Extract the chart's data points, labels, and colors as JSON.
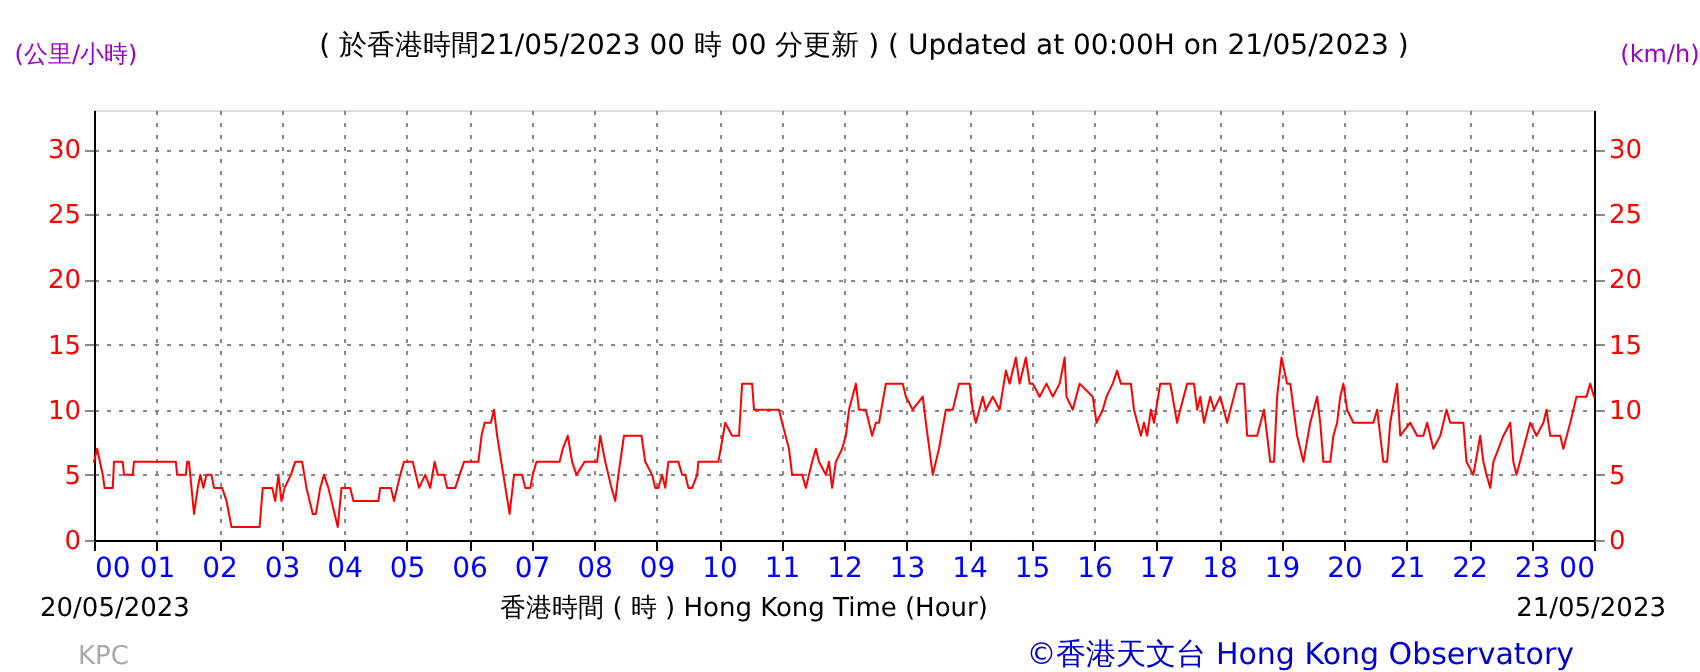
{
  "chart_data": {
    "type": "line",
    "title": "( 於香港時間21/05/2023 00 時 00 分更新 ) ( Updated at 00:00H on 21/05/2023 )",
    "xlabel": "香港時間 ( 時 )  Hong Kong Time (Hour)",
    "ylabel": "(公里/小時)",
    "y2label": "(km/h)",
    "annotations": [
      "20/05/2023",
      "21/05/2023",
      "KPC",
      "©香港天文台 Hong Kong Observatory"
    ],
    "xlim": [
      0,
      24
    ],
    "xticks": [
      {
        "value": 0,
        "label": "00"
      },
      {
        "value": 1,
        "label": "01"
      },
      {
        "value": 2,
        "label": "02"
      },
      {
        "value": 3,
        "label": "03"
      },
      {
        "value": 4,
        "label": "04"
      },
      {
        "value": 5,
        "label": "05"
      },
      {
        "value": 6,
        "label": "06"
      },
      {
        "value": 7,
        "label": "07"
      },
      {
        "value": 8,
        "label": "08"
      },
      {
        "value": 9,
        "label": "09"
      },
      10,
      11,
      12,
      13,
      14,
      15,
      16,
      17,
      18,
      19,
      20,
      21,
      22,
      23,
      {
        "value": 24,
        "label": "00"
      }
    ],
    "ylim": [
      0,
      33
    ],
    "yticks": [
      0,
      5,
      10,
      15,
      20,
      25,
      30
    ],
    "y2lim": [
      0,
      33
    ],
    "y2ticks": [
      0,
      5,
      10,
      15,
      20,
      25,
      30
    ],
    "grid": true,
    "line_style": "solid",
    "series": [
      {
        "color": "#ff0000",
        "x": [
          0.0,
          0.05,
          0.14,
          0.17,
          0.3,
          0.32,
          0.46,
          0.48,
          0.62,
          0.64,
          1.31,
          1.33,
          1.47,
          1.49,
          1.52,
          1.56,
          1.6,
          1.66,
          1.7,
          1.75,
          1.8,
          1.88,
          1.92,
          2.05,
          2.12,
          2.2,
          2.65,
          2.7,
          2.85,
          2.9,
          2.95,
          3.0,
          3.05,
          3.15,
          3.22,
          3.33,
          3.4,
          3.5,
          3.55,
          3.62,
          3.68,
          3.75,
          3.85,
          3.9,
          3.96,
          4.1,
          4.15,
          4.55,
          4.58,
          4.75,
          4.8,
          4.9,
          4.96,
          5.1,
          5.2,
          5.3,
          5.38,
          5.45,
          5.5,
          5.6,
          5.65,
          5.78,
          5.85,
          5.92,
          6.15,
          6.2,
          6.25,
          6.35,
          6.4,
          6.45,
          6.55,
          6.65,
          6.72,
          6.85,
          6.9,
          6.98,
          7.02,
          7.08,
          7.45,
          7.5,
          7.58,
          7.65,
          7.72,
          7.85,
          8.05,
          8.1,
          8.18,
          8.28,
          8.34,
          8.39,
          8.48,
          8.76,
          8.82,
          8.93,
          8.98,
          9.03,
          9.09,
          9.14,
          9.19,
          9.35,
          9.41,
          9.46,
          9.51,
          9.57,
          9.65,
          9.67,
          9.99,
          10.1,
          10.21,
          10.32,
          10.37,
          10.53,
          10.56,
          10.64,
          10.96,
          11.01,
          11.12,
          11.17,
          11.33,
          11.39,
          11.44,
          11.49,
          11.55,
          11.6,
          11.71,
          11.76,
          11.81,
          11.87,
          11.97,
          12.03,
          12.08,
          12.19,
          12.24,
          12.35,
          12.4,
          12.45,
          12.51,
          12.56,
          12.67,
          12.94,
          12.99,
          13.1,
          13.26,
          13.31,
          13.42,
          13.47,
          13.52,
          13.63,
          13.74,
          13.84,
          14.01,
          14.06,
          14.11,
          14.22,
          14.27,
          14.38,
          14.49,
          14.59,
          14.65,
          14.75,
          14.81,
          14.91,
          14.97,
          15.02,
          15.13,
          15.24,
          15.34,
          15.45,
          15.53,
          15.56,
          15.66,
          15.77,
          15.98,
          16.04,
          16.14,
          16.2,
          16.3,
          16.37,
          16.43,
          16.59,
          16.64,
          16.75,
          16.8,
          16.85,
          16.91,
          16.96,
          17.06,
          17.22,
          17.33,
          17.38,
          17.49,
          17.6,
          17.65,
          17.7,
          17.76,
          17.86,
          17.92,
          18.02,
          18.13,
          18.29,
          18.4,
          18.45,
          18.61,
          18.72,
          18.82,
          18.88,
          18.93,
          19.0,
          19.09,
          19.14,
          19.25,
          19.35,
          19.46,
          19.57,
          19.62,
          19.67,
          19.78,
          19.83,
          19.89,
          19.94,
          19.99,
          20.05,
          20.15,
          20.47,
          20.53,
          20.63,
          20.69,
          20.74,
          20.85,
          20.9,
          21.06,
          21.17,
          21.27,
          21.33,
          21.43,
          21.54,
          21.64,
          21.7,
          21.91,
          21.96,
          22.07,
          22.18,
          22.23,
          22.28,
          22.34,
          22.39,
          22.55,
          22.66,
          22.71,
          22.76,
          22.87,
          22.98,
          23.08,
          23.19,
          23.24,
          23.3,
          23.46,
          23.51,
          23.62,
          23.72,
          23.88,
          23.94,
          24.0
        ],
        "values": [
          6,
          7,
          5,
          4,
          4,
          6,
          6,
          5,
          5,
          6,
          6,
          5,
          5,
          6,
          6,
          4,
          2,
          4,
          5,
          4,
          5,
          5,
          4,
          4,
          3,
          1,
          1,
          4,
          4,
          3,
          5,
          3,
          4,
          5,
          6,
          6,
          4,
          2,
          2,
          4,
          5,
          4,
          2,
          1,
          4,
          4,
          3,
          3,
          4,
          4,
          3,
          5,
          6,
          6,
          4,
          5,
          4,
          6,
          5,
          5,
          4,
          4,
          5,
          6,
          6,
          8,
          9,
          9,
          10,
          8,
          5,
          2,
          5,
          5,
          4,
          4,
          5,
          6,
          6,
          7,
          8,
          6,
          5,
          6,
          6,
          8,
          6,
          4,
          3,
          5,
          8,
          8,
          6,
          5,
          4,
          4,
          5,
          4,
          6,
          6,
          5,
          5,
          4,
          4,
          5,
          6,
          6,
          9,
          8,
          8,
          12,
          12,
          10,
          10,
          10,
          9,
          7,
          5,
          5,
          4,
          5,
          6,
          7,
          6,
          5,
          6,
          4,
          6,
          7,
          8,
          10,
          12,
          10,
          10,
          9,
          8,
          9,
          9,
          12,
          12,
          11,
          10,
          11,
          9,
          5,
          6,
          7,
          10,
          10,
          12,
          12,
          10,
          9,
          11,
          10,
          11,
          10,
          13,
          12,
          14,
          12,
          14,
          12,
          12,
          11,
          12,
          11,
          12,
          14,
          11,
          10,
          12,
          11,
          9,
          10,
          11,
          12,
          13,
          12,
          12,
          10,
          8,
          9,
          8,
          10,
          9,
          12,
          12,
          9,
          10,
          12,
          12,
          10,
          11,
          9,
          11,
          10,
          11,
          9,
          12,
          12,
          8,
          8,
          10,
          6,
          6,
          11,
          14,
          12,
          12,
          8,
          6,
          9,
          11,
          9,
          6,
          6,
          8,
          9,
          11,
          12,
          10,
          9,
          9,
          10,
          6,
          6,
          9,
          12,
          8,
          9,
          8,
          8,
          9,
          7,
          8,
          10,
          9,
          9,
          6,
          5,
          8,
          6,
          5,
          4,
          6,
          8,
          9,
          6,
          5,
          7,
          9,
          8,
          9,
          10,
          8,
          8,
          7,
          9,
          11,
          11,
          12,
          11
        ]
      }
    ]
  }
}
